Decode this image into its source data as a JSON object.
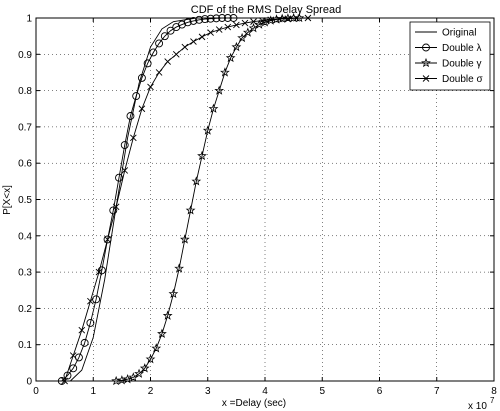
{
  "chart_data": {
    "type": "line",
    "title": "CDF of the RMS Delay Spread",
    "xlabel": "x =Delay (sec)",
    "ylabel": "P[X<x]",
    "x_multiplier": "x 10",
    "x_multiplier_exponent": "7",
    "xlim": [
      0,
      8
    ],
    "ylim": [
      0,
      1
    ],
    "xticks": [
      "0",
      "1",
      "2",
      "3",
      "4",
      "5",
      "6",
      "7",
      "8"
    ],
    "yticks": [
      "0",
      "0.1",
      "0.2",
      "0.3",
      "0.4",
      "0.5",
      "0.6",
      "0.7",
      "0.8",
      "0.9",
      "1"
    ],
    "grid": true,
    "legend_position": "top-right",
    "series": [
      {
        "name": "Original",
        "marker": "none",
        "x": [
          0.6,
          0.8,
          1.0,
          1.2,
          1.4,
          1.6,
          1.8,
          2.0,
          2.2,
          2.4,
          2.6,
          2.8,
          3.0,
          3.2,
          3.4,
          3.6
        ],
        "y": [
          0.0,
          0.03,
          0.12,
          0.28,
          0.48,
          0.67,
          0.82,
          0.92,
          0.97,
          0.99,
          0.995,
          1.0,
          1.0,
          1.0,
          1.0,
          1.0
        ]
      },
      {
        "name": "Double λ",
        "marker": "circle",
        "x": [
          0.45,
          0.55,
          0.65,
          0.75,
          0.85,
          0.95,
          1.05,
          1.15,
          1.25,
          1.35,
          1.45,
          1.55,
          1.65,
          1.75,
          1.85,
          1.95,
          2.05,
          2.15,
          2.25,
          2.35,
          2.45,
          2.55,
          2.65,
          2.75,
          2.85,
          2.95,
          3.05,
          3.15,
          3.25,
          3.35,
          3.45
        ],
        "y": [
          0.0,
          0.015,
          0.035,
          0.065,
          0.105,
          0.16,
          0.225,
          0.305,
          0.39,
          0.47,
          0.56,
          0.65,
          0.73,
          0.785,
          0.835,
          0.875,
          0.905,
          0.93,
          0.95,
          0.965,
          0.975,
          0.982,
          0.988,
          0.992,
          0.995,
          0.997,
          0.998,
          0.999,
          1.0,
          1.0,
          1.0
        ]
      },
      {
        "name": "Double γ",
        "marker": "star",
        "x": [
          1.4,
          1.5,
          1.6,
          1.7,
          1.8,
          1.9,
          2.0,
          2.1,
          2.2,
          2.3,
          2.4,
          2.5,
          2.6,
          2.7,
          2.8,
          2.9,
          3.0,
          3.1,
          3.2,
          3.3,
          3.4,
          3.5,
          3.6,
          3.7,
          3.8,
          3.9,
          4.0,
          4.1,
          4.2,
          4.3,
          4.4,
          4.5,
          4.6
        ],
        "y": [
          0.0,
          0.002,
          0.005,
          0.01,
          0.02,
          0.035,
          0.06,
          0.09,
          0.13,
          0.18,
          0.24,
          0.31,
          0.39,
          0.47,
          0.55,
          0.62,
          0.69,
          0.75,
          0.8,
          0.85,
          0.89,
          0.92,
          0.945,
          0.96,
          0.972,
          0.982,
          0.988,
          0.993,
          0.996,
          0.998,
          0.999,
          1.0,
          1.0
        ]
      },
      {
        "name": "Double σ",
        "marker": "x",
        "x": [
          0.5,
          0.65,
          0.8,
          0.95,
          1.1,
          1.25,
          1.4,
          1.55,
          1.7,
          1.85,
          2.0,
          2.15,
          2.3,
          2.45,
          2.6,
          2.75,
          2.9,
          3.05,
          3.2,
          3.35,
          3.5,
          3.65,
          3.8,
          3.95,
          4.1,
          4.25,
          4.4,
          4.55,
          4.75
        ],
        "y": [
          0.0,
          0.07,
          0.14,
          0.22,
          0.3,
          0.39,
          0.48,
          0.58,
          0.67,
          0.75,
          0.81,
          0.85,
          0.88,
          0.9,
          0.92,
          0.935,
          0.948,
          0.96,
          0.968,
          0.975,
          0.981,
          0.986,
          0.99,
          0.993,
          0.995,
          0.997,
          0.998,
          0.999,
          1.0
        ]
      }
    ]
  }
}
